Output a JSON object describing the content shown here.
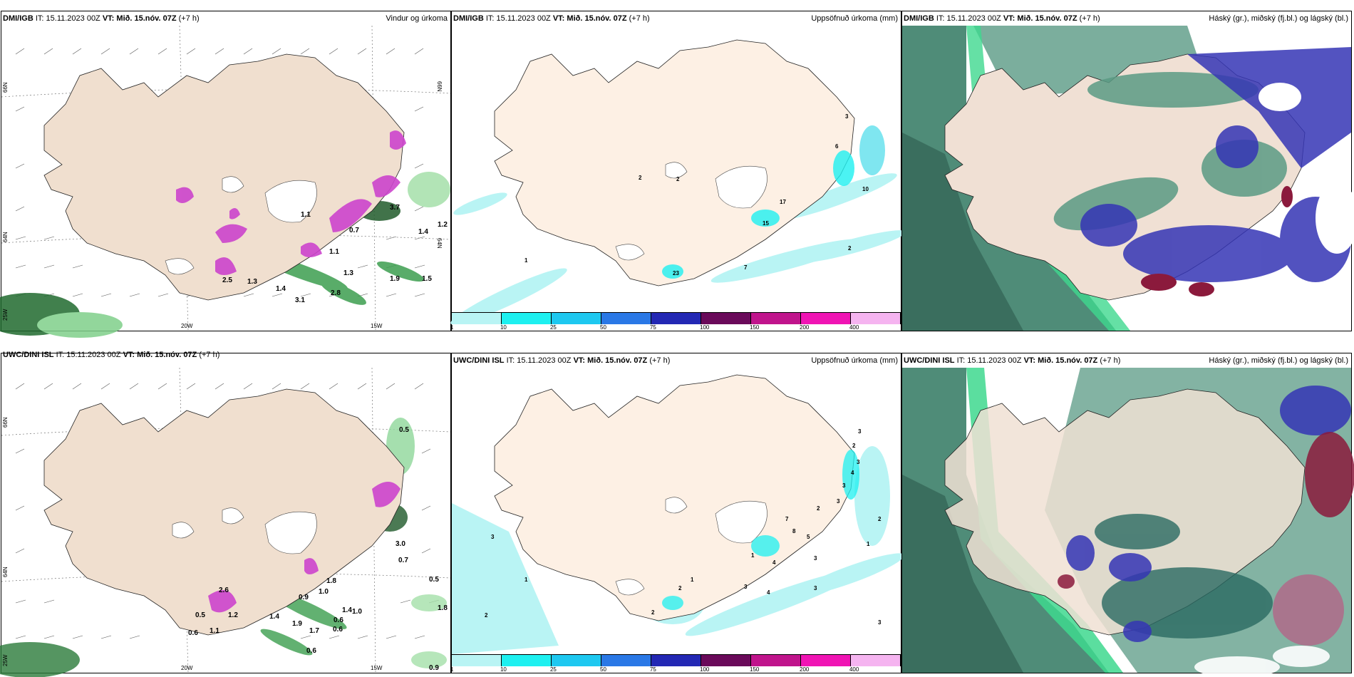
{
  "panels": [
    {
      "model": "DMI/IGB",
      "it_label": "IT:",
      "it_value": "15.11.2023 00Z",
      "vt_label": "VT:",
      "vt_value": "Mið. 15.nóv. 07Z",
      "lead": "(+7 h)",
      "field": "Vindur og úrkoma",
      "grid_labels": {
        "lat_a": "66N",
        "lat_b": "64N",
        "lon_a": "20W",
        "lon_b": "15W",
        "lon_c": "25W",
        "lat_right_a": "66N",
        "lat_right_b": "64N"
      },
      "values": [
        "3.7",
        "1.4",
        "0.7",
        "1.9",
        "1.5",
        "2.5",
        "1.3",
        "1.4",
        "3.1",
        "1.3",
        "1.2",
        "1.1",
        "2.8",
        "1.1"
      ]
    },
    {
      "model": "DMI/IGB",
      "it_label": "IT:",
      "it_value": "15.11.2023 00Z",
      "vt_label": "VT:",
      "vt_value": "Mið. 15.nóv. 07Z",
      "lead": "(+7 h)",
      "field": "Uppsöfnuð úrkoma (mm)",
      "values": [
        "3",
        "6",
        "2",
        "2",
        "10",
        "1",
        "7",
        "2",
        "15",
        "23",
        "17"
      ]
    },
    {
      "model": "DMI/IGB",
      "it_label": "IT:",
      "it_value": "15.11.2023 00Z",
      "vt_label": "VT:",
      "vt_value": "Mið. 15.nóv. 07Z",
      "lead": "(+7 h)",
      "field": "Háský (gr.), miðský (fj.bl.) og lágský (bl.)"
    },
    {
      "model": "UWC/DINI ISL",
      "it_label": "IT:",
      "it_value": "15.11.2023 00Z",
      "vt_label": "VT:",
      "vt_value": "Mið. 15.nóv. 07Z",
      "lead": "(+7 h)",
      "field": "Vindur og úrkoma",
      "grid_labels": {
        "lat_a": "66N",
        "lat_b": "64N",
        "lon_a": "20W",
        "lon_b": "15W",
        "lon_c": "25W"
      },
      "values": [
        "0.5",
        "3.0",
        "0.7",
        "0.5",
        "1.8",
        "1.8",
        "1.0",
        "0.9",
        "0.6",
        "1.4",
        "0.5",
        "1.2",
        "0.6",
        "1.1",
        "1.4",
        "1.9",
        "1.7",
        "0.6",
        "1.0",
        "0.6",
        "0.9",
        "2.6"
      ]
    },
    {
      "model": "UWC/DINI ISL",
      "it_label": "IT:",
      "it_value": "15.11.2023 00Z",
      "vt_label": "VT:",
      "vt_value": "Mið. 15.nóv. 07Z",
      "lead": "(+7 h)",
      "field": "Uppsöfnuð úrkoma (mm)",
      "values": [
        "3",
        "2",
        "3",
        "4",
        "3",
        "3",
        "2",
        "5",
        "8",
        "7",
        "2",
        "1",
        "4",
        "3",
        "1",
        "2",
        "3",
        "4",
        "3",
        "3",
        "1",
        "2",
        "3",
        "2",
        "1"
      ]
    },
    {
      "model": "UWC/DINI ISL",
      "it_label": "IT:",
      "it_value": "15.11.2023 00Z",
      "vt_label": "VT:",
      "vt_value": "Mið. 15.nóv. 07Z",
      "lead": "(+7 h)",
      "field": "Háský (gr.), miðský (fj.bl.) og lágský (bl.)"
    }
  ],
  "legend": {
    "labels": [
      "1",
      "10",
      "25",
      "50",
      "75",
      "100",
      "150",
      "200",
      "400"
    ],
    "colors": [
      "#b9f4f4",
      "#1ef0f0",
      "#1ec8f0",
      "#2a78e6",
      "#2328b4",
      "#6a0a5a",
      "#c0148c",
      "#f014b4",
      "#f5b4f0"
    ]
  },
  "colors": {
    "land": "#f5e6da",
    "sea": "#ffffff",
    "wind_land": "#f0dcd2",
    "precip_green": "#2e8b3c",
    "precip_magenta": "#cc44cc",
    "cloud_high": "#5a8c7a",
    "cloud_mid": "#2bd68e",
    "cloud_low": "#3030b0"
  }
}
